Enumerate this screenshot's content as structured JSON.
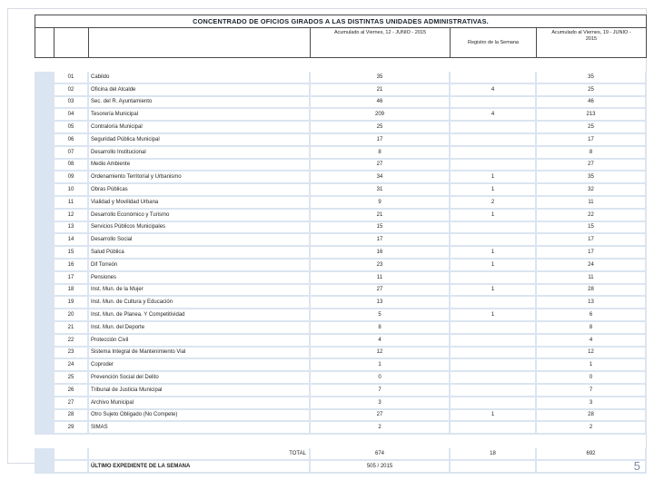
{
  "page": {
    "number": "5"
  },
  "table": {
    "title": "CONCENTRADO DE OFICIOS GIRADOS A LAS DISTINTAS UNIDADES ADMINISTRATIVAS.",
    "col_headers": {
      "acumulado_prev": "Acumulado al Viernes, 12 - JUNIO - 2015",
      "registro": "Registro de la Semana",
      "acumulado_curr": "Acumulado al Viernes, 19 - JUNIO - 2015"
    },
    "rows": [
      {
        "num": "01",
        "label": "Cabildo",
        "acumulado_prev": "35",
        "registro": "",
        "acumulado_curr": "35"
      },
      {
        "num": "02",
        "label": "Oficina del Alcalde",
        "acumulado_prev": "21",
        "registro": "4",
        "acumulado_curr": "25"
      },
      {
        "num": "03",
        "label": "Sec. del R. Ayuntamiento",
        "acumulado_prev": "46",
        "registro": "",
        "acumulado_curr": "46"
      },
      {
        "num": "04",
        "label": "Tesorería Municipal",
        "acumulado_prev": "209",
        "registro": "4",
        "acumulado_curr": "213"
      },
      {
        "num": "05",
        "label": "Contraloría Municipal",
        "acumulado_prev": "25",
        "registro": "",
        "acumulado_curr": "25"
      },
      {
        "num": "06",
        "label": "Seguridad Pública Municipal",
        "acumulado_prev": "17",
        "registro": "",
        "acumulado_curr": "17"
      },
      {
        "num": "07",
        "label": "Desarrollo Institucional",
        "acumulado_prev": "8",
        "registro": "",
        "acumulado_curr": "8"
      },
      {
        "num": "08",
        "label": "Medio Ambiente",
        "acumulado_prev": "27",
        "registro": "",
        "acumulado_curr": "27"
      },
      {
        "num": "09",
        "label": "Ordenamiento Territorial y Urbanismo",
        "acumulado_prev": "34",
        "registro": "1",
        "acumulado_curr": "35"
      },
      {
        "num": "10",
        "label": "Obras Públicas",
        "acumulado_prev": "31",
        "registro": "1",
        "acumulado_curr": "32"
      },
      {
        "num": "11",
        "label": "Vialidad y Movilidad Urbana",
        "acumulado_prev": "9",
        "registro": "2",
        "acumulado_curr": "11"
      },
      {
        "num": "12",
        "label": "Desarrollo Económico y Turismo",
        "acumulado_prev": "21",
        "registro": "1",
        "acumulado_curr": "22"
      },
      {
        "num": "13",
        "label": "Servicios Públicos Municipales",
        "acumulado_prev": "15",
        "registro": "",
        "acumulado_curr": "15"
      },
      {
        "num": "14",
        "label": "Desarrollo Social",
        "acumulado_prev": "17",
        "registro": "",
        "acumulado_curr": "17"
      },
      {
        "num": "15",
        "label": "Salud Pública",
        "acumulado_prev": "16",
        "registro": "1",
        "acumulado_curr": "17"
      },
      {
        "num": "16",
        "label": "Dif Torreón",
        "acumulado_prev": "23",
        "registro": "1",
        "acumulado_curr": "24"
      },
      {
        "num": "17",
        "label": "Pensiones",
        "acumulado_prev": "11",
        "registro": "",
        "acumulado_curr": "11"
      },
      {
        "num": "18",
        "label": "Inst. Mun. de la Mujer",
        "acumulado_prev": "27",
        "registro": "1",
        "acumulado_curr": "28"
      },
      {
        "num": "19",
        "label": "Inst. Mun. de Cultura y Educación",
        "acumulado_prev": "13",
        "registro": "",
        "acumulado_curr": "13"
      },
      {
        "num": "20",
        "label": "Inst. Mun. de Planea. Y Competitividad",
        "acumulado_prev": "5",
        "registro": "1",
        "acumulado_curr": "6"
      },
      {
        "num": "21",
        "label": "Inst. Mun. del Deporte",
        "acumulado_prev": "8",
        "registro": "",
        "acumulado_curr": "8"
      },
      {
        "num": "22",
        "label": "Protección Civil",
        "acumulado_prev": "4",
        "registro": "",
        "acumulado_curr": "4"
      },
      {
        "num": "23",
        "label": "Sistema Integral de Mantenimiento Vial",
        "acumulado_prev": "12",
        "registro": "",
        "acumulado_curr": "12"
      },
      {
        "num": "24",
        "label": "Coproder",
        "acumulado_prev": "1",
        "registro": "",
        "acumulado_curr": "1"
      },
      {
        "num": "25",
        "label": "Prevención Social del Delito",
        "acumulado_prev": "0",
        "registro": "",
        "acumulado_curr": "0"
      },
      {
        "num": "26",
        "label": "Tribunal de Justicia Municipal",
        "acumulado_prev": "7",
        "registro": "",
        "acumulado_curr": "7"
      },
      {
        "num": "27",
        "label": "Archivo Municipal",
        "acumulado_prev": "3",
        "registro": "",
        "acumulado_curr": "3"
      },
      {
        "num": "28",
        "label": "Otro Sujeto Obligado (No Compete)",
        "acumulado_prev": "27",
        "registro": "1",
        "acumulado_curr": "28"
      },
      {
        "num": "29",
        "label": "SIMAS",
        "acumulado_prev": "2",
        "registro": "",
        "acumulado_curr": "2"
      }
    ],
    "total": {
      "label": "TOTAL",
      "acumulado_prev": "674",
      "registro": "18",
      "acumulado_curr": "692"
    },
    "ultimo": {
      "label": "ÚLTIMO EXPEDIENTE DE LA SEMANA",
      "value": "505 / 2015"
    }
  },
  "colors": {
    "stripe": "#dbe5f1",
    "header_border": "#4a4a4a",
    "page_number": "#7d8aa0"
  }
}
